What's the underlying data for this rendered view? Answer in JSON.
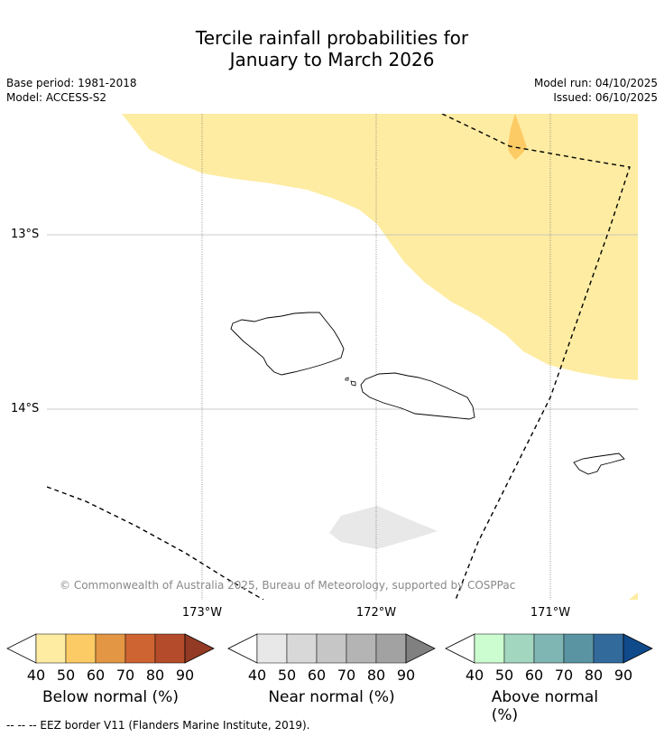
{
  "title_line1": "Tercile rainfall probabilities for",
  "title_line2": "January to March 2026",
  "base_period": "Base period: 1981-2018",
  "model": "Model: ACCESS-S2",
  "model_run": "Model run: 04/10/2025",
  "issued": "Issued: 06/10/2025",
  "lat_labels": [
    "13°S",
    "14°S"
  ],
  "lon_labels": [
    "173°W",
    "172°W",
    "171°W"
  ],
  "copyright": "© Commonwealth of Australia 2025, Bureau of Meteorology, supported by COSPPac",
  "colorbars": [
    {
      "title": "Below normal (%)",
      "ticks": [
        "40",
        "50",
        "60",
        "70",
        "80",
        "90"
      ],
      "colors": [
        "#ffffff",
        "#feeca2",
        "#fdcb65",
        "#e39644",
        "#ce6432",
        "#b44b2a",
        "#923a24"
      ]
    },
    {
      "title": "Near normal (%)",
      "ticks": [
        "40",
        "50",
        "60",
        "70",
        "80",
        "90"
      ],
      "colors": [
        "#ffffff",
        "#e8e8e8",
        "#d8d8d8",
        "#c6c6c6",
        "#b4b4b4",
        "#a2a2a2",
        "#808080"
      ]
    },
    {
      "title": "Above normal (%)",
      "ticks": [
        "40",
        "50",
        "60",
        "70",
        "80",
        "90"
      ],
      "colors": [
        "#ffffff",
        "#ccfdd0",
        "#a3d6bf",
        "#7fb6b3",
        "#5a94a3",
        "#336a9c",
        "#0f4a8a"
      ]
    }
  ],
  "footnote": "--  --  -- EEZ border V11 (Flanders Marine Institute, 2019).",
  "map_regions": [
    {
      "name": "below-normal-40-50",
      "color": "#feeca2"
    },
    {
      "name": "below-normal-50-60",
      "color": "#fdcb65"
    },
    {
      "name": "near-normal-40-50",
      "color": "#e8e8e8"
    }
  ]
}
